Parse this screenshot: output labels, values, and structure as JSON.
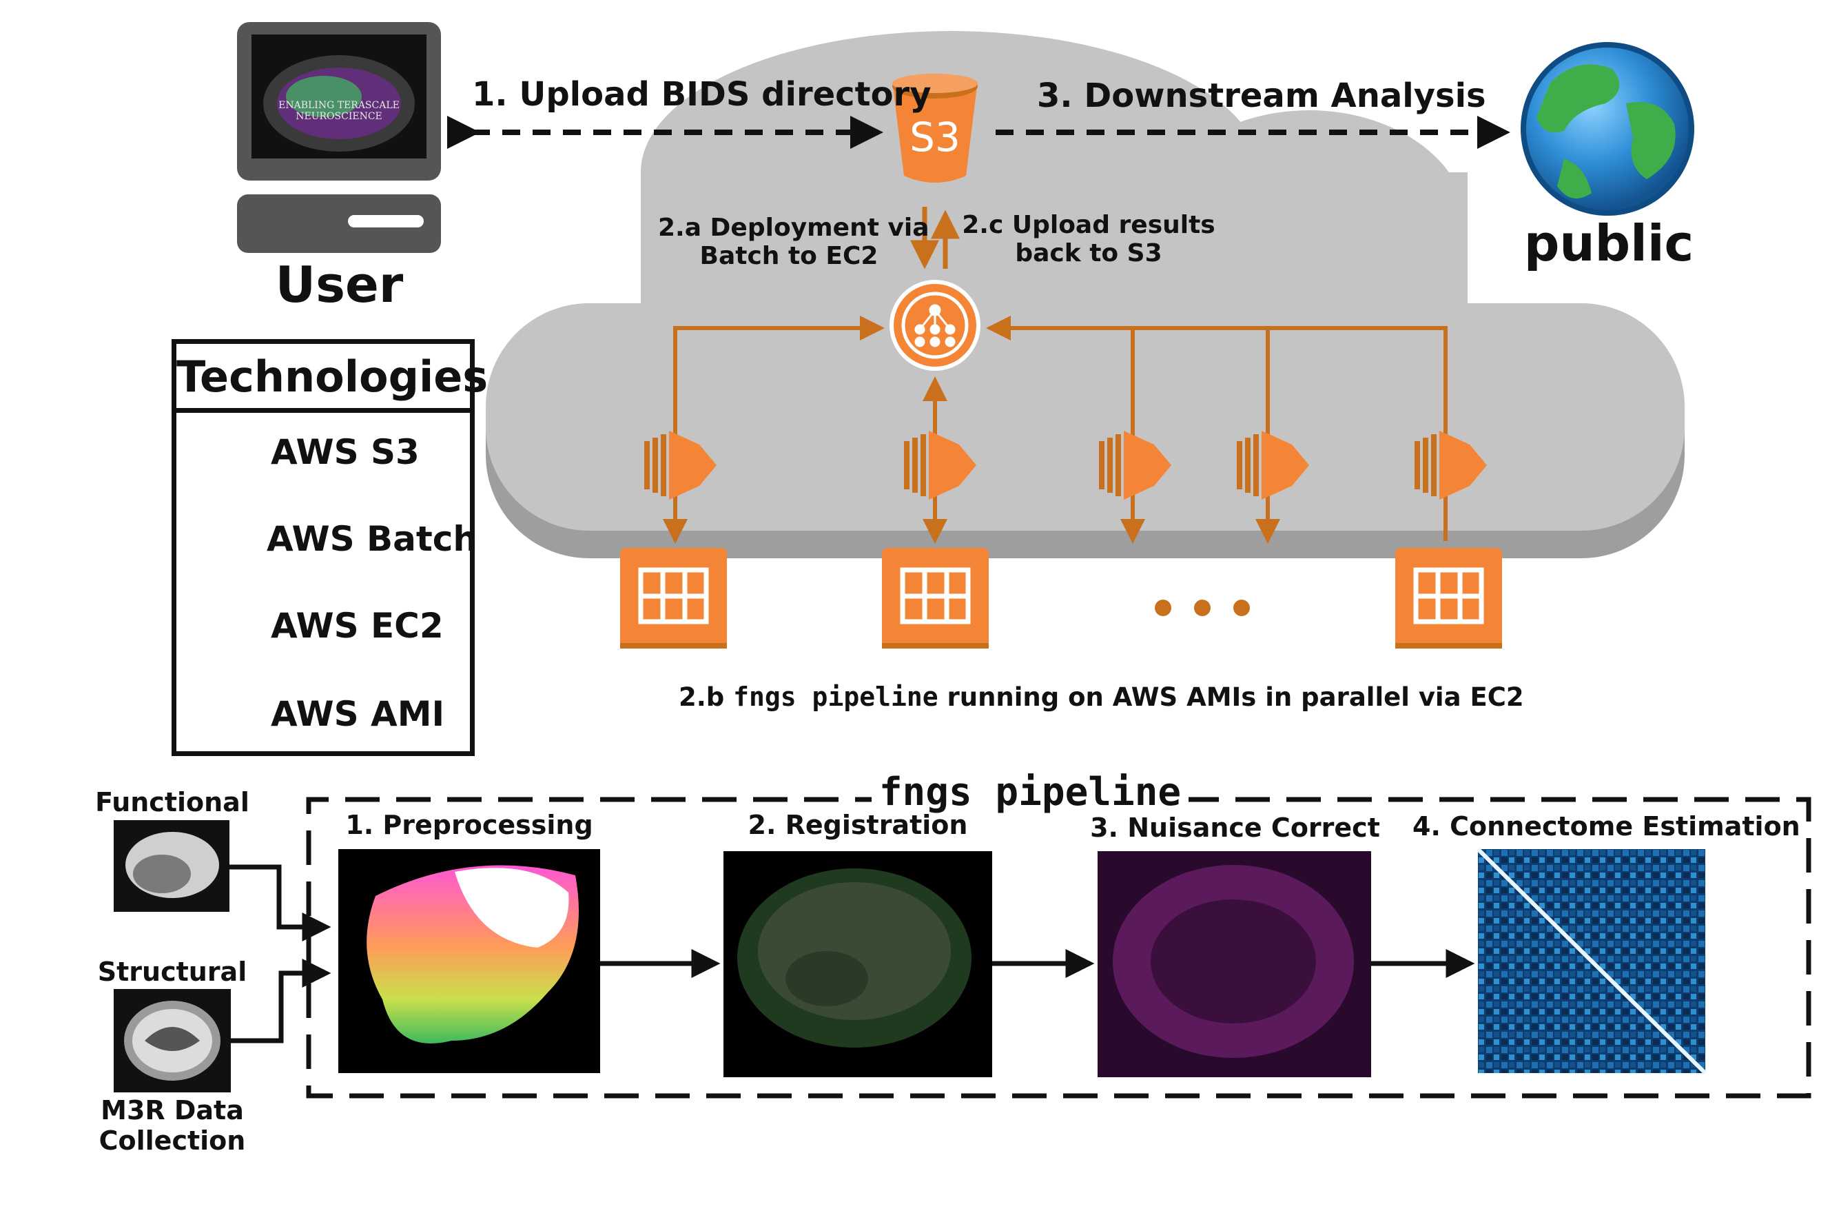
{
  "user": {
    "label": "User",
    "screen_title_line1": "ENABLING TERASCALE",
    "screen_title_line2": "NEUROSCIENCE"
  },
  "public": {
    "label": "public"
  },
  "s3_icon_text": "S3",
  "steps": {
    "upload": "1. Upload BIDS directory",
    "downstream": "3. Downstream Analysis",
    "deploy_line1": "2.a Deployment via",
    "deploy_line2": "Batch to EC2",
    "results_line1": "2.c Upload results",
    "results_line2": "back to S3",
    "pipeline_prefix": "2.b ",
    "pipeline_code": "fngs pipeline",
    "pipeline_suffix": " running on AWS AMIs in parallel via EC2"
  },
  "technologies": {
    "title": "Technologies",
    "items": [
      {
        "icon": "s3-bucket-icon",
        "label": "AWS S3"
      },
      {
        "icon": "batch-icon",
        "label": "AWS Batch"
      },
      {
        "icon": "ec2-icon",
        "label": "AWS EC2"
      },
      {
        "icon": "ami-icon",
        "label": "AWS AMI"
      }
    ]
  },
  "pipeline": {
    "title": "fngs pipeline",
    "stages": [
      "1. Preprocessing",
      "2. Registration",
      "3. Nuisance Correct",
      "4. Connectome Estimation"
    ],
    "inputs": {
      "functional": "Functional",
      "structural": "Structural",
      "collection_line1": "M3R Data",
      "collection_line2": "Collection"
    }
  },
  "colors": {
    "aws_orange": "#f58536",
    "arrow_orange": "#c8701b",
    "cloud": "#c4c4c4",
    "cloud_shadow": "#9e9e9e",
    "ink": "#111111"
  }
}
